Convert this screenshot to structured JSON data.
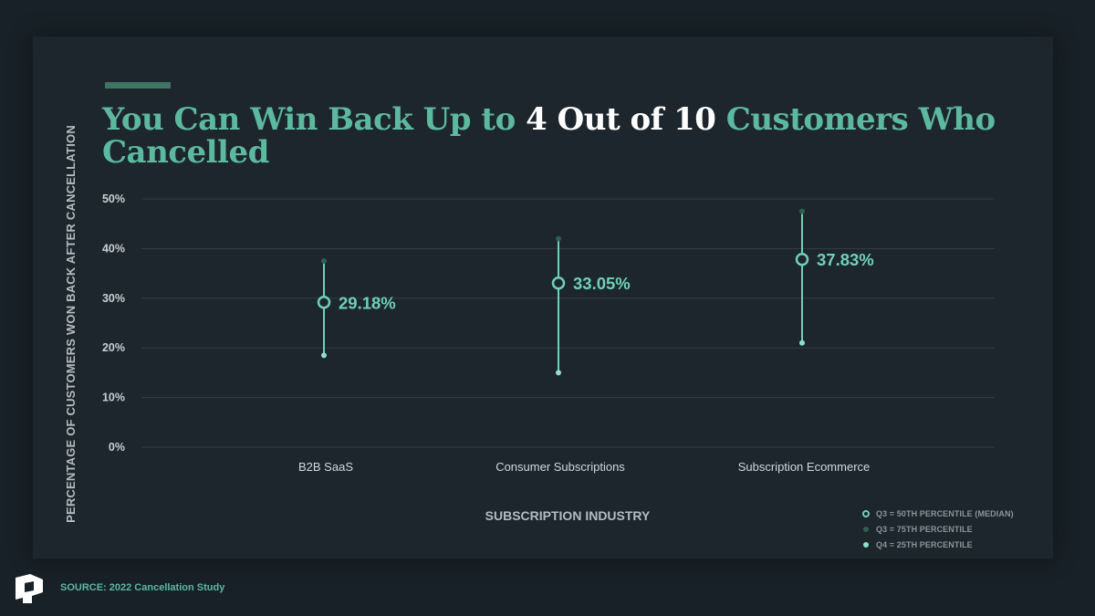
{
  "title": {
    "part1": "You Can Win Back Up to ",
    "highlight": "4 Out of 10",
    "part2": " Customers Who Cancelled"
  },
  "source": "SOURCE: 2022 Cancellation Study",
  "colors": {
    "title": "#5db8a0",
    "highlight": "#ffffff",
    "line": "#6fd0b8",
    "q75": "#2f5e52",
    "q25": "#8fe0cb",
    "grid": "#323e45"
  },
  "chart_data": {
    "type": "scatter",
    "title": "You Can Win Back Up to 4 Out of 10 Customers Who Cancelled",
    "xlabel": "SUBSCRIPTION INDUSTRY",
    "ylabel": "PERCENTAGE OF CUSTOMERS WON BACK AFTER CANCELLATION",
    "ylim": [
      0,
      50
    ],
    "yticks": [
      "0%",
      "10%",
      "20%",
      "30%",
      "40%",
      "50%"
    ],
    "ytick_values": [
      0,
      10,
      20,
      30,
      40,
      50
    ],
    "grid": true,
    "legend_position": "bottom-right",
    "categories": [
      "B2B SaaS",
      "Consumer Subscriptions",
      "Subscription Ecommerce"
    ],
    "series": [
      {
        "name": "Q3 = 50TH PERCENTILE (MEDIAN)",
        "values": [
          29.18,
          33.05,
          37.83
        ]
      },
      {
        "name": "Q3 = 75TH PERCENTILE",
        "values": [
          37.5,
          42.0,
          47.5
        ]
      },
      {
        "name": "Q4 = 25TH PERCENTILE",
        "values": [
          18.5,
          15.0,
          21.0
        ]
      }
    ],
    "data_labels": [
      "29.18%",
      "33.05%",
      "37.83%"
    ]
  }
}
